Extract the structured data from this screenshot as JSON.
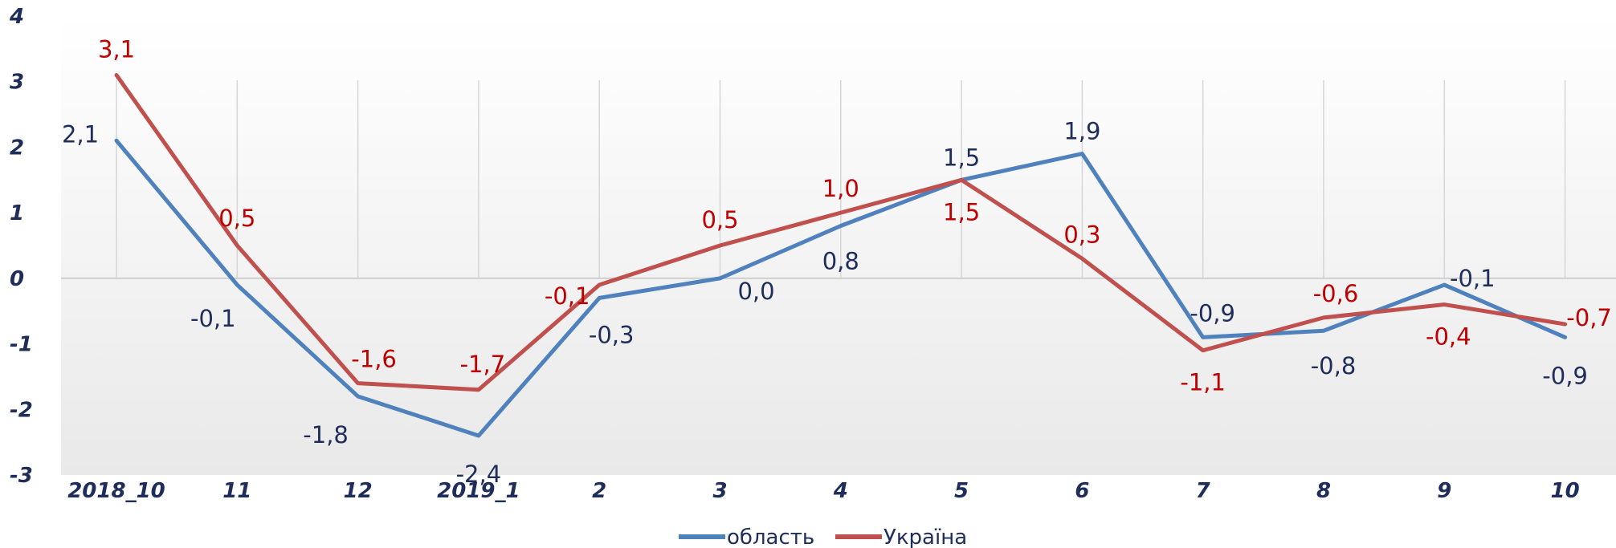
{
  "chart_data": {
    "type": "line",
    "title": "",
    "xlabel": "",
    "ylabel": "",
    "categories": [
      "2018_10",
      "11",
      "12",
      "2019_1",
      "2",
      "3",
      "4",
      "5",
      "6",
      "7",
      "8",
      "9",
      "10"
    ],
    "ylim": [
      -3,
      4
    ],
    "yticks": [
      "4",
      "3",
      "2",
      "1",
      "0",
      "-1",
      "-2",
      "-3"
    ],
    "grid": "vertical",
    "legend_position": "bottom",
    "series": [
      {
        "name": "область",
        "color": "#4f81bd",
        "label_color": "#1f2d5a",
        "values": [
          2.1,
          -0.1,
          -1.8,
          -2.4,
          -0.3,
          0.0,
          0.8,
          1.5,
          1.9,
          -0.9,
          -0.8,
          -0.1,
          -0.9
        ],
        "labels": [
          "2,1",
          "-0,1",
          "-1,8",
          "-2,4",
          "-0,3",
          "0,0",
          "0,8",
          "1,5",
          "1,9",
          "-0,9",
          "-0,8",
          "-0,1",
          "-0,9"
        ]
      },
      {
        "name": "Україна",
        "color": "#c0504d",
        "label_color": "#c00000",
        "values": [
          3.1,
          0.5,
          -1.6,
          -1.7,
          -0.1,
          0.5,
          1.0,
          1.5,
          0.3,
          -1.1,
          -0.6,
          -0.4,
          -0.7
        ],
        "labels": [
          "3,1",
          "0,5",
          "-1,6",
          "-1,7",
          "-0,1",
          "0,5",
          "1,0",
          "1,5",
          "0,3",
          "-1,1",
          "-0,6",
          "-0,4",
          "-0,7"
        ]
      }
    ]
  }
}
